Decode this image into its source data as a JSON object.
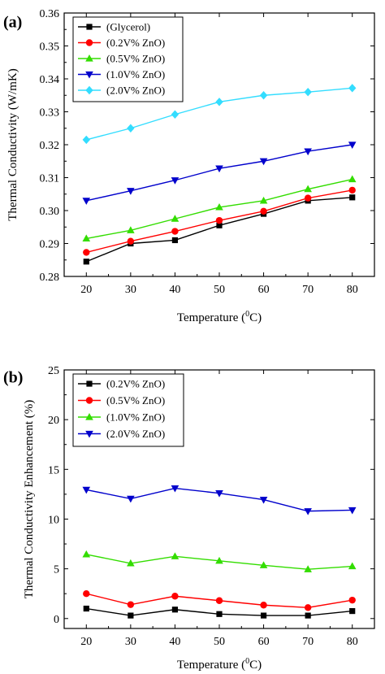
{
  "chart_data": [
    {
      "type": "line",
      "panel_label": "(a)",
      "xlabel_main": "Temperature (",
      "xlabel_sup": "0",
      "xlabel_end": "C)",
      "ylabel": "Thermal Conductivity (W/mK)",
      "x": [
        20,
        30,
        40,
        50,
        60,
        70,
        80
      ],
      "xlim": [
        15,
        85
      ],
      "ylim": [
        0.28,
        0.36
      ],
      "xticks": [
        "20",
        "30",
        "40",
        "50",
        "60",
        "70",
        "80"
      ],
      "yticks": [
        "0.28",
        "0.29",
        "0.30",
        "0.31",
        "0.32",
        "0.33",
        "0.34",
        "0.35",
        "0.36"
      ],
      "legend": "top-left",
      "series": [
        {
          "name": "(Glycerol)",
          "color": "#000000",
          "marker": "square",
          "values": [
            0.2845,
            0.29,
            0.291,
            0.2955,
            0.299,
            0.303,
            0.304
          ]
        },
        {
          "name": "(0.2V% ZnO)",
          "color": "#ff0000",
          "marker": "circle",
          "values": [
            0.2873,
            0.2907,
            0.2937,
            0.297,
            0.2998,
            0.3038,
            0.3062
          ]
        },
        {
          "name": "(0.5V% ZnO)",
          "color": "#33dd00",
          "marker": "triangle-up",
          "values": [
            0.2915,
            0.294,
            0.2975,
            0.301,
            0.303,
            0.3065,
            0.3095
          ]
        },
        {
          "name": "(1.0V% ZnO)",
          "color": "#0000cc",
          "marker": "triangle-down",
          "values": [
            0.303,
            0.306,
            0.3092,
            0.3128,
            0.315,
            0.318,
            0.32
          ]
        },
        {
          "name": "(2.0V% ZnO)",
          "color": "#33ddff",
          "marker": "diamond",
          "values": [
            0.3215,
            0.325,
            0.3292,
            0.333,
            0.335,
            0.336,
            0.3372
          ]
        }
      ]
    },
    {
      "type": "line",
      "panel_label": "(b)",
      "xlabel_main": "Temperature (",
      "xlabel_sup": "0",
      "xlabel_end": "C)",
      "ylabel": "Thermal Conductivity Enhancement (%)",
      "x": [
        20,
        30,
        40,
        50,
        60,
        70,
        80
      ],
      "xlim": [
        15,
        85
      ],
      "ylim": [
        -1,
        25
      ],
      "xticks": [
        "20",
        "30",
        "40",
        "50",
        "60",
        "70",
        "80"
      ],
      "yticks": [
        "0",
        "5",
        "10",
        "15",
        "20",
        "25"
      ],
      "legend": "top-left",
      "series": [
        {
          "name": "(0.2V% ZnO)",
          "color": "#000000",
          "marker": "square",
          "values": [
            1.0,
            0.3,
            0.9,
            0.45,
            0.3,
            0.3,
            0.75
          ]
        },
        {
          "name": "(0.5V% ZnO)",
          "color": "#ff0000",
          "marker": "circle",
          "values": [
            2.5,
            1.4,
            2.25,
            1.8,
            1.35,
            1.1,
            1.85
          ]
        },
        {
          "name": "(1.0V% ZnO)",
          "color": "#33dd00",
          "marker": "triangle-up",
          "values": [
            6.45,
            5.55,
            6.25,
            5.8,
            5.35,
            4.95,
            5.25
          ]
        },
        {
          "name": "(2.0V% ZnO)",
          "color": "#0000cc",
          "marker": "triangle-down",
          "values": [
            12.95,
            12.05,
            13.1,
            12.6,
            11.95,
            10.8,
            10.9
          ]
        }
      ]
    }
  ]
}
